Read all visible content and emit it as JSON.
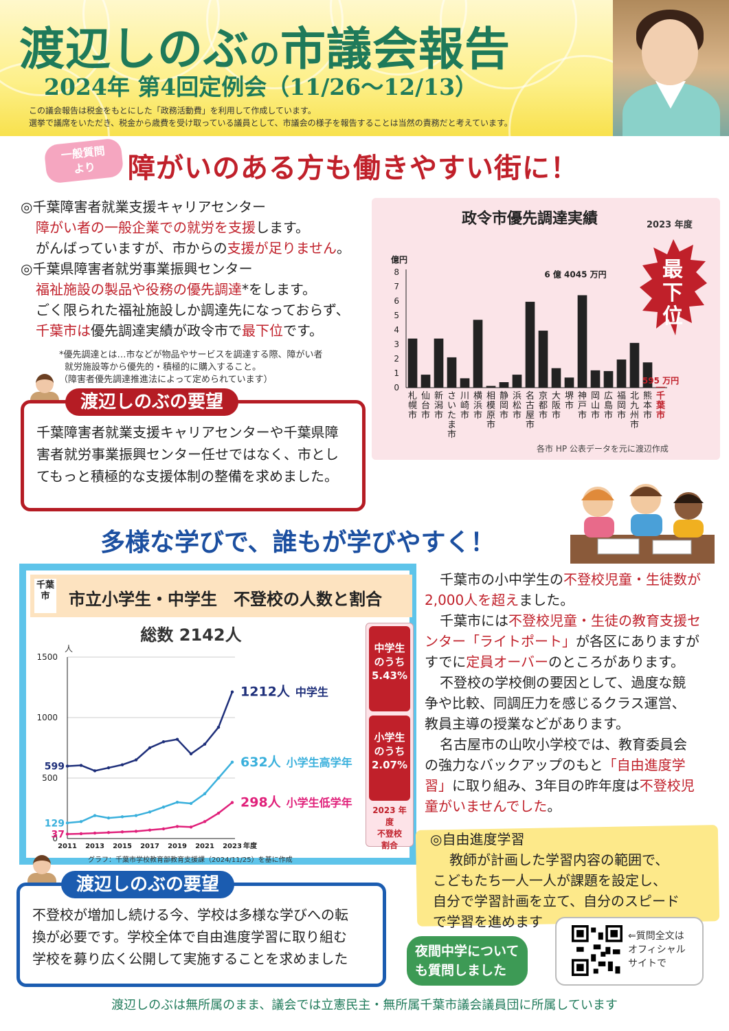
{
  "header": {
    "title_name": "渡辺しのぶ",
    "title_no": "の",
    "title_rest": "市議会報告",
    "subtitle": "2024年 第4回定例会（11/26〜12/13）",
    "note_line1": "この議会報告は税金をもとにした「政務活動費」を利用して作成しています。",
    "note_line2": "選挙で議席をいただき、税金から歳費を受け取っている議員として、市議会の様子を報告することは当然の責務だと考えています。"
  },
  "section1": {
    "badge_line1": "一般質問",
    "badge_line2": "より",
    "headline": "障がいのある方も働きやすい街に！",
    "item1_title": "◎千葉障害者就業支援キャリアセンター",
    "item1_l1_red": "障がい者の一般企業での就労を支援",
    "item1_l1_rest": "します。",
    "item1_l2_a": "がんばっていますが、市からの",
    "item1_l2_red": "支援が足りません",
    "item1_l2_b": "。",
    "item2_title": "◎千葉県障害者就労事業振興センター",
    "item2_l1_red": "福祉施設の製品や役務の優先調達",
    "item2_l1_rest": "*をします。",
    "item2_l2": "ごく限られた福祉施設しか調達先になっておらず、",
    "item2_l3_red": "千葉市は",
    "item2_l3_a": "優先調達実績が政令市で",
    "item2_l3_red2": "最下位",
    "item2_l3_b": "です。",
    "foot1": "*優先調達とは…市などが物品やサービスを調達する際、障がい者",
    "foot2": "就労施設等から優先的・積極的に購入すること。",
    "foot3": "（障害者優先調達推進法によって定められています）"
  },
  "demand1": {
    "label": "渡辺しのぶの要望",
    "line1": "千葉障害者就業支援キャリアセンターや千葉県障",
    "line2": "害者就労事業振興センター任せではなく、市とし",
    "line3": "てもっと積極的な支援体制の整備を求めました。"
  },
  "section2": {
    "headline": "多様な学びで、誰もが学びやすく！",
    "p1_a": "千葉市の小中学生の",
    "p1_red": "不登校児童・生徒数が",
    "p1_red2": "2,000人を超え",
    "p1_b": "ました。",
    "p2_a": "千葉市には",
    "p2_red": "不登校児童・生徒の教育支援セ",
    "p2_red2": "ンター「ライトポート」",
    "p2_b": "が各区にありますが",
    "p2_c": "すでに",
    "p2_red3": "定員オーバー",
    "p2_d": "のところがあります。",
    "p3_l1": "不登校の学校側の要因として、過度な競",
    "p3_l2": "争や比較、同調圧力を感じるクラス運営、",
    "p3_l3": "教員主導の授業などがあります。",
    "p4_l1": "名古屋市の山吹小学校では、教育委員会",
    "p4_l2_a": "の強力なバックアップのもと",
    "p4_l2_red": "「自由進度学",
    "p4_l3_red": "習」",
    "p4_l3_a": "に取り組み、3年目の昨年度は",
    "p4_l3_red2": "不登校児",
    "p4_l4_red": "童がいませんでした",
    "p4_l4_b": "。",
    "jiyu_title": "◎自由進度学習",
    "jiyu_l1": "教師が計画した学習内容の範囲で、",
    "jiyu_l2": "こどもたち一人一人が課題を設定し、",
    "jiyu_l3": "自分で学習計画を立て、自分のスピード",
    "jiyu_l4": "で学習を進めます"
  },
  "demand2": {
    "label": "渡辺しのぶの要望",
    "line1": "不登校が増加し続ける今、学校は多様な学びへの転",
    "line2": "換が必要です。学校全体で自由進度学習に取り組む",
    "line3": "学校を募り広く公開して実施することを求めました"
  },
  "night": {
    "line1": "夜間中学について",
    "line2": "も質問しました"
  },
  "qr": {
    "line1": "⇐質問全文は",
    "line2": "オフィシャル",
    "line3": "サイトで"
  },
  "footer": "渡辺しのぶは無所属のまま、議会では立憲民主・無所属千葉市議会議員団に所属しています",
  "chart_data": [
    {
      "type": "bar",
      "title": "政令市優先調達実績",
      "year_label": "2023 年度",
      "ylabel": "億円",
      "ylim": [
        0,
        8
      ],
      "yticks": [
        0,
        1,
        2,
        3,
        4,
        5,
        6,
        7,
        8
      ],
      "categories": [
        "札幌市",
        "仙台市",
        "新潟市",
        "さいたま市",
        "川崎市",
        "横浜市",
        "相模原市",
        "静岡市",
        "浜松市",
        "名古屋市",
        "京都市",
        "大阪市",
        "堺市",
        "神戸市",
        "岡山市",
        "広島市",
        "福岡市",
        "北九州市",
        "熊本市",
        "千葉市"
      ],
      "values": [
        3.4,
        0.9,
        3.4,
        2.1,
        0.65,
        4.7,
        0.12,
        0.38,
        0.9,
        5.95,
        3.95,
        1.35,
        0.7,
        6.4045,
        1.2,
        1.15,
        1.95,
        3.1,
        1.75,
        0.0595
      ],
      "annotation_kobe": "6 億 4045 万円",
      "annotation_chiba": "595 万円",
      "callout": "最下位",
      "source": "各市 HP 公表データを元に渡辺作成",
      "bar_color": "#222222",
      "highlight_color": "#c0202a"
    },
    {
      "type": "line",
      "title": "市立小学生・中学生　不登校の人数と割合",
      "tag": "千葉市",
      "total": "総数 2142人",
      "ylabel": "人",
      "xlabel": "年度",
      "ylim": [
        0,
        1500
      ],
      "yticks": [
        0,
        500,
        1000,
        1500
      ],
      "xticks": [
        "2011",
        "2013",
        "2015",
        "2017",
        "2019",
        "2021",
        "2023"
      ],
      "x": [
        2011,
        2012,
        2013,
        2014,
        2015,
        2016,
        2017,
        2018,
        2019,
        2020,
        2021,
        2022,
        2023
      ],
      "series": [
        {
          "name": "中学生",
          "label": "1212人",
          "color": "#1e2f7a",
          "start_label": "599",
          "values": [
            599,
            605,
            560,
            585,
            610,
            650,
            750,
            800,
            820,
            700,
            780,
            920,
            1212
          ]
        },
        {
          "name": "小学生高学年",
          "label": "632人",
          "color": "#3ab0dc",
          "start_label": "129",
          "values": [
            129,
            140,
            190,
            170,
            180,
            190,
            220,
            260,
            300,
            290,
            370,
            500,
            632
          ]
        },
        {
          "name": "小学生低学年",
          "label": "298人",
          "color": "#e0207a",
          "start_label": "37",
          "values": [
            37,
            40,
            45,
            50,
            55,
            60,
            70,
            80,
            100,
            95,
            140,
            210,
            298
          ]
        }
      ],
      "side": {
        "box1_l1": "中学生",
        "box1_l2": "のうち",
        "box1_l3": "5.43%",
        "box2_l1": "小学生",
        "box2_l2": "のうち",
        "box2_l3": "2.07%",
        "note_l1": "2023 年度",
        "note_l2": "不登校",
        "note_l3": "割合"
      },
      "credit": "グラフ：千葉市学校教育部教育支援課（2024/11/25）を基に作成"
    }
  ]
}
